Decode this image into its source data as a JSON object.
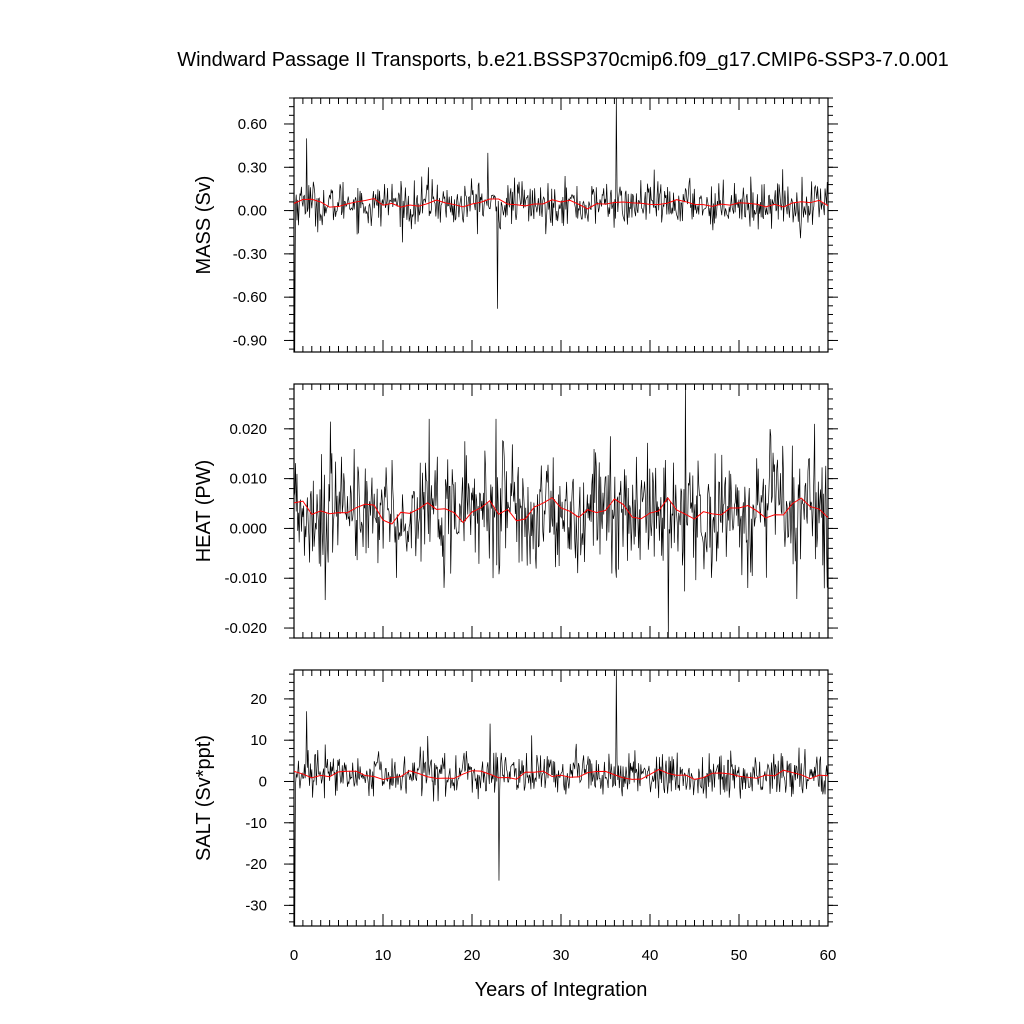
{
  "chart_data": {
    "title": "Windward Passage II Transports, b.e21.BSSP370cmip6.f09_g17.CMIP6-SSP3-7.0.001",
    "xlabel": "Years of Integration",
    "xlim": [
      0,
      60
    ],
    "xticks": [
      0,
      10,
      20,
      30,
      40,
      50,
      60
    ],
    "series_colors": {
      "raw": "#000000",
      "smoothed": "#ff0000"
    },
    "panels": [
      {
        "type": "line",
        "ylabel": "MASS (Sv)",
        "ylim": [
          -0.98,
          0.78
        ],
        "yticks": [
          0.6,
          0.3,
          0.0,
          -0.3,
          -0.6,
          -0.9
        ],
        "ytick_labels": [
          "0.60",
          "0.30",
          "0.00",
          "-0.30",
          "-0.60",
          "-0.90"
        ],
        "noise_std": 0.075,
        "smooth_mean": 0.045,
        "smooth_amp": 0.035,
        "spikes": [
          {
            "x": 0.1,
            "y": -0.98
          },
          {
            "x": 1.4,
            "y": 0.5
          },
          {
            "x": 22.9,
            "y": -0.68
          },
          {
            "x": 36.2,
            "y": 0.78
          },
          {
            "x": 15.1,
            "y": 0.3
          },
          {
            "x": 21.8,
            "y": 0.4
          }
        ]
      },
      {
        "type": "line",
        "ylabel": "HEAT (PW)",
        "ylim": [
          -0.022,
          0.029
        ],
        "yticks": [
          0.02,
          0.01,
          0.0,
          -0.01,
          -0.02
        ],
        "ytick_labels": [
          "0.020",
          "0.010",
          "0.000",
          "-0.010",
          "-0.020"
        ],
        "noise_std": 0.0058,
        "smooth_mean": 0.0035,
        "smooth_amp": 0.0025,
        "spikes": [
          {
            "x": 15.2,
            "y": 0.022
          },
          {
            "x": 44.0,
            "y": 0.029
          },
          {
            "x": 42.1,
            "y": -0.022
          },
          {
            "x": 22.7,
            "y": 0.022
          },
          {
            "x": 58.5,
            "y": 0.021
          },
          {
            "x": 59.6,
            "y": -0.012
          }
        ]
      },
      {
        "type": "line",
        "ylabel": "SALT (Sv*ppt)",
        "ylim": [
          -35,
          27
        ],
        "yticks": [
          20,
          10,
          0,
          -10,
          -20,
          -30
        ],
        "ytick_labels": [
          "20",
          "10",
          "0",
          "-10",
          "-20",
          "-30"
        ],
        "noise_std": 2.6,
        "smooth_mean": 1.6,
        "smooth_amp": 1.2,
        "spikes": [
          {
            "x": 0.1,
            "y": -35
          },
          {
            "x": 1.4,
            "y": 17
          },
          {
            "x": 23.0,
            "y": -24
          },
          {
            "x": 36.2,
            "y": 27
          },
          {
            "x": 22.0,
            "y": 14
          },
          {
            "x": 15.0,
            "y": 11
          }
        ]
      }
    ]
  }
}
